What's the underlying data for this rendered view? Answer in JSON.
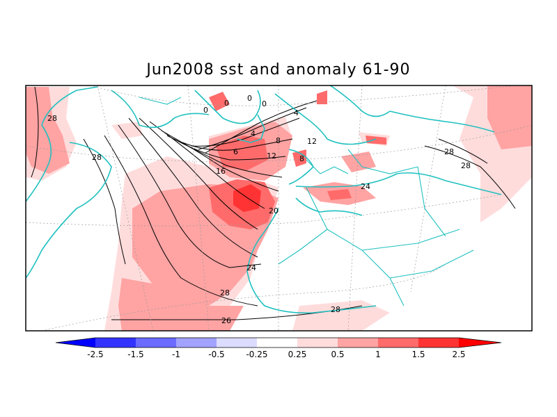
{
  "title": "Jun2008 sst and anomaly 61-90",
  "map": {
    "projection": "polar stereographic (North Atlantic / Europe)",
    "shading": "sst anomaly",
    "contours": "sst",
    "contour_labels": [
      "28",
      "28",
      "0",
      "0",
      "0",
      "0",
      "4",
      "4",
      "8",
      "6",
      "8",
      "12",
      "12",
      "16",
      "20",
      "24",
      "24",
      "28",
      "28",
      "28",
      "26",
      "28"
    ]
  },
  "colorbar": {
    "levels": [
      "-2.5",
      "-1.5",
      "-1",
      "-0.5",
      "-0.25",
      "0.25",
      "0.5",
      "1",
      "1.5",
      "2.5"
    ],
    "colors": [
      "#0000ff",
      "#3333ff",
      "#6b6bff",
      "#a3a3ff",
      "#dcdcff",
      "#ffffff",
      "#ffdcdc",
      "#ffa3a3",
      "#ff6b6b",
      "#ff3333",
      "#ff0000"
    ]
  }
}
